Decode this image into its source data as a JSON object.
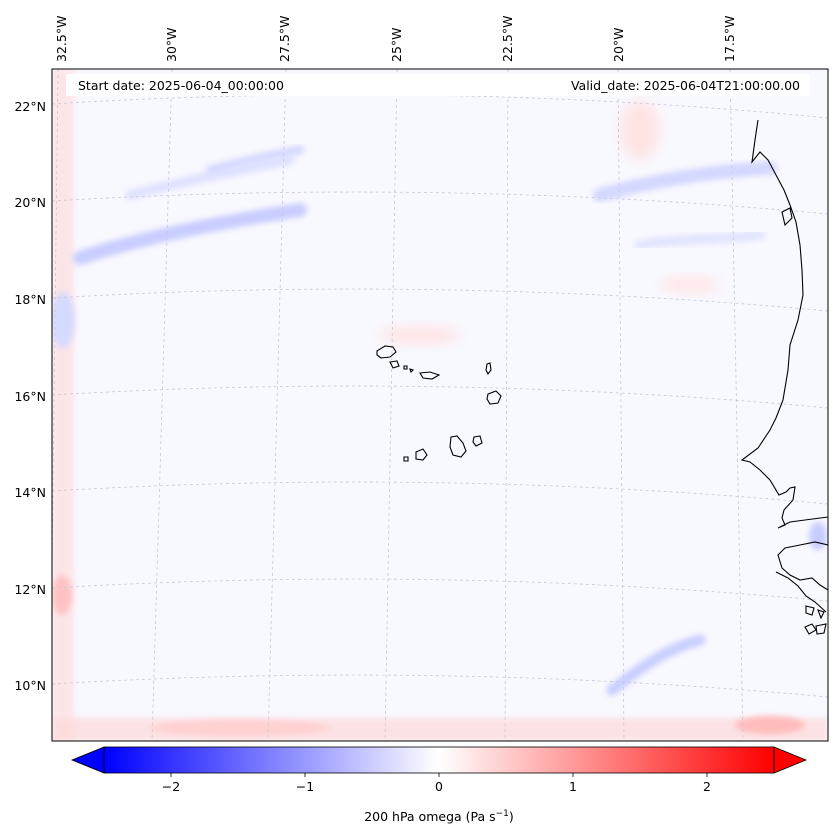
{
  "header": {
    "start_date": "Start date: 2025-06-04_00:00:00",
    "valid_date": "Valid_date: 2025-06-04T21:00:00.00"
  },
  "map": {
    "lon_labels": [
      "32.5°W",
      "30°W",
      "27.5°W",
      "25°W",
      "22.5°W",
      "20°W",
      "17.5°W"
    ],
    "lat_labels": [
      "22°N",
      "20°N",
      "18°N",
      "16°N",
      "14°N",
      "12°N",
      "10°N"
    ],
    "islands": [
      "santo-antao",
      "sao-vicente",
      "santa-luzia",
      "sao-nicolau",
      "sal",
      "boa-vista",
      "maio",
      "santiago",
      "fogo",
      "brava"
    ]
  },
  "colorbar": {
    "ticks": [
      "−2",
      "−1",
      "0",
      "1",
      "2"
    ],
    "label": "200 hPa omega (Pa s",
    "label_sup": "−1",
    "label_close": ")",
    "neg_color": "#0000ff",
    "pos_color": "#ff0000"
  }
}
